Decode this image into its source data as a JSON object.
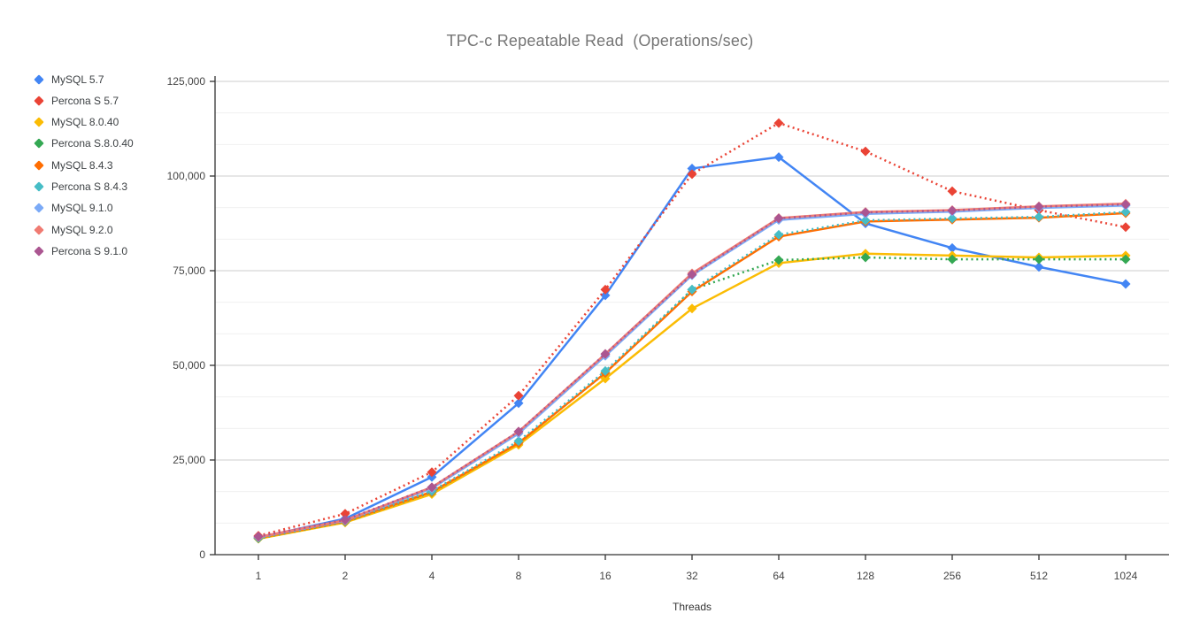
{
  "chart": {
    "title": "TPC-c Repeatable Read  (Operations/sec)"
  },
  "chart_data": {
    "type": "line",
    "title": "TPC-c Repeatable Read  (Operations/sec)",
    "xlabel": "Threads",
    "ylabel": "",
    "categories": [
      "1",
      "2",
      "4",
      "8",
      "16",
      "32",
      "64",
      "128",
      "256",
      "512",
      "1024"
    ],
    "ylim": [
      0,
      125000
    ],
    "y_major_step": 25000,
    "y_minor_divisions": 3,
    "y_tick_labels": [
      "0",
      "25,000",
      "50,000",
      "75,000",
      "100,000",
      "125,000"
    ],
    "grid": true,
    "legend_position": "left",
    "marker": "diamond",
    "series": [
      {
        "name": "MySQL 5.7",
        "color": "#4285F4",
        "style": "solid",
        "values": [
          4500,
          9500,
          20500,
          40000,
          68500,
          102000,
          105000,
          87500,
          81000,
          76000,
          71500
        ]
      },
      {
        "name": "Percona S 5.7",
        "color": "#EA4335",
        "style": "dotted",
        "values": [
          5000,
          10800,
          21800,
          42000,
          70000,
          100500,
          114000,
          106500,
          96000,
          91000,
          86500
        ]
      },
      {
        "name": "MySQL 8.0.40",
        "color": "#FBBC04",
        "style": "solid",
        "values": [
          4200,
          8500,
          16000,
          29000,
          46500,
          65000,
          77000,
          79500,
          79000,
          78500,
          79000
        ]
      },
      {
        "name": "Percona S.8.0.40",
        "color": "#34A853",
        "style": "dotted",
        "values": [
          4300,
          8700,
          16500,
          29500,
          48000,
          70000,
          77800,
          78500,
          78000,
          78000,
          78000
        ]
      },
      {
        "name": "MySQL 8.4.3",
        "color": "#FF6D01",
        "style": "solid",
        "values": [
          4400,
          8800,
          16600,
          29500,
          48000,
          69500,
          84000,
          88000,
          88500,
          89000,
          90200
        ]
      },
      {
        "name": "Percona S 8.4.3",
        "color": "#46BDC6",
        "style": "dotted",
        "values": [
          4450,
          8900,
          16800,
          30000,
          48500,
          70000,
          84500,
          88300,
          88800,
          89200,
          90500
        ]
      },
      {
        "name": "MySQL 9.1.0",
        "color": "#7BAAF7",
        "style": "solid",
        "values": [
          4600,
          9000,
          17500,
          32000,
          52500,
          73800,
          88400,
          90000,
          90600,
          91600,
          92200
        ]
      },
      {
        "name": "MySQL 9.2.0",
        "color": "#F07B72",
        "style": "solid",
        "values": [
          4700,
          9100,
          17800,
          32500,
          53000,
          74300,
          88900,
          90500,
          91000,
          92000,
          92700
        ]
      },
      {
        "name": "Percona S 9.1.0",
        "color": "#AB5691",
        "style": "dotted",
        "values": [
          4800,
          9200,
          17800,
          32500,
          53000,
          74000,
          88800,
          90400,
          90900,
          91900,
          92500
        ]
      }
    ],
    "colors": {
      "major_gridline": "#cccccc",
      "minor_gridline": "#f0f0f0",
      "axis_line": "#333333",
      "tick_label": "#444444",
      "title_text": "#757575",
      "background": "#ffffff"
    }
  }
}
